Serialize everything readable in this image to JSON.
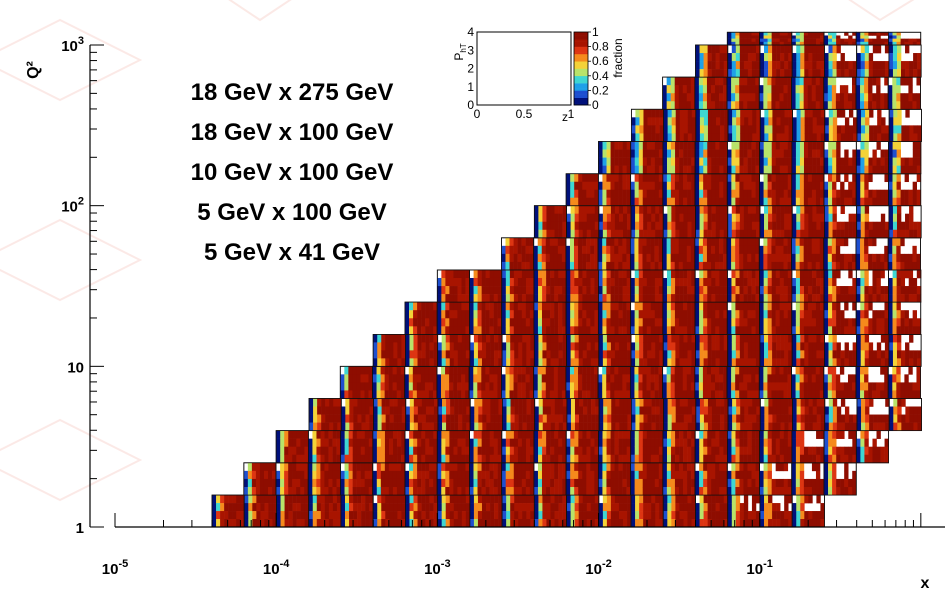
{
  "chart_data": {
    "type": "heatmap",
    "title": "",
    "xlabel": "x",
    "ylabel": "Q²",
    "x_log": true,
    "y_log": true,
    "xlim": [
      1e-05,
      1
    ],
    "ylim": [
      0.8,
      1200
    ],
    "x_ticks": [
      {
        "base": "10",
        "exp": "-5"
      },
      {
        "base": "10",
        "exp": "-4"
      },
      {
        "base": "10",
        "exp": "-3"
      },
      {
        "base": "10",
        "exp": "-2"
      },
      {
        "base": "10",
        "exp": "-1"
      }
    ],
    "y_ticks": [
      {
        "base": "1",
        "exp": ""
      },
      {
        "base": "10",
        "exp": ""
      },
      {
        "base": "10",
        "exp": "2"
      },
      {
        "base": "10",
        "exp": "3"
      }
    ],
    "beam_configurations": [
      "18 GeV x 275 GeV",
      "18 GeV x 100 GeV",
      "10 GeV x 100 GeV",
      "5 GeV x 100 GeV",
      "5 GeV x 41 GeV"
    ],
    "bins_per_decade": 5,
    "cell_variable": "fraction as function of z and P_hT",
    "q2_bin_ranges_x": [
      {
        "q2": [
          1,
          1.58
        ],
        "x": [
          4e-05,
          0.25
        ]
      },
      {
        "q2": [
          1.58,
          2.51
        ],
        "x": [
          6.3e-05,
          0.4
        ]
      },
      {
        "q2": [
          2.51,
          3.98
        ],
        "x": [
          0.0001,
          0.63
        ]
      },
      {
        "q2": [
          3.98,
          6.31
        ],
        "x": [
          0.00016,
          1
        ]
      },
      {
        "q2": [
          6.31,
          10
        ],
        "x": [
          0.00025,
          1
        ]
      },
      {
        "q2": [
          10,
          15.8
        ],
        "x": [
          0.0004,
          1
        ]
      },
      {
        "q2": [
          15.8,
          25.1
        ],
        "x": [
          0.00063,
          1
        ]
      },
      {
        "q2": [
          25.1,
          39.8
        ],
        "x": [
          0.001,
          1
        ]
      },
      {
        "q2": [
          39.8,
          63.1
        ],
        "x": [
          0.0025,
          1
        ]
      },
      {
        "q2": [
          63.1,
          100
        ],
        "x": [
          0.004,
          1
        ]
      },
      {
        "q2": [
          100,
          158
        ],
        "x": [
          0.0063,
          1
        ]
      },
      {
        "q2": [
          158,
          251
        ],
        "x": [
          0.01,
          1
        ]
      },
      {
        "q2": [
          251,
          398
        ],
        "x": [
          0.016,
          1
        ]
      },
      {
        "q2": [
          398,
          631
        ],
        "x": [
          0.025,
          1
        ]
      },
      {
        "q2": [
          631,
          1000
        ],
        "x": [
          0.04,
          1
        ]
      },
      {
        "q2": [
          1000,
          1200
        ],
        "x": [
          0.063,
          1
        ]
      }
    ],
    "inset": {
      "xlabel": "z",
      "ylabel_base": "P",
      "ylabel_sub": "hT",
      "x_ticks": [
        "0",
        "0.5",
        "1"
      ],
      "y_ticks": [
        "0",
        "1",
        "2",
        "3",
        "4"
      ],
      "colorbar_label": "fraction",
      "colorbar_ticks": [
        "0",
        "0.2",
        "0.4",
        "0.6",
        "0.8",
        "1"
      ],
      "colorbar_range": [
        0,
        1
      ]
    }
  },
  "colors": {
    "colormap": [
      "#00107a",
      "#1d4fd0",
      "#1fa0e8",
      "#3fd6d2",
      "#b8e36a",
      "#f4d238",
      "#f58a1c",
      "#dd3512",
      "#a81400",
      "#8e0d00"
    ],
    "background_deco": "#fbe7e3"
  }
}
